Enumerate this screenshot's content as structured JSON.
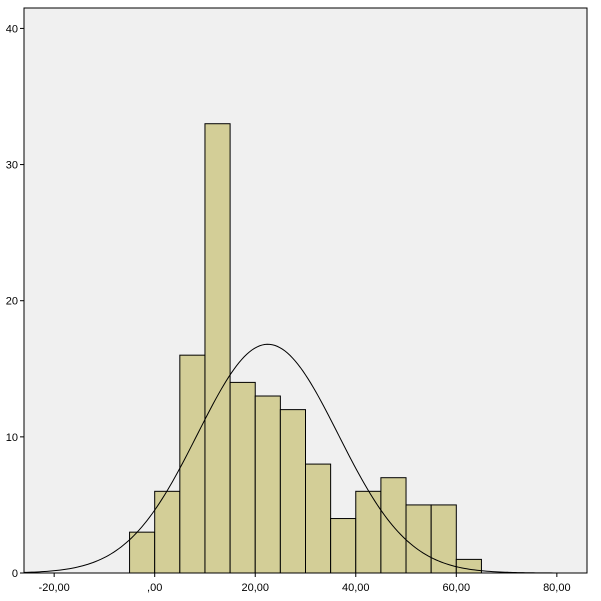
{
  "chart_data": {
    "type": "bar",
    "subtype": "histogram-with-normal-curve",
    "bin_width": 5,
    "bins": [
      {
        "start": -5,
        "end": 0,
        "count": 3
      },
      {
        "start": 0,
        "end": 5,
        "count": 6
      },
      {
        "start": 5,
        "end": 10,
        "count": 16
      },
      {
        "start": 10,
        "end": 15,
        "count": 33
      },
      {
        "start": 15,
        "end": 20,
        "count": 14
      },
      {
        "start": 20,
        "end": 25,
        "count": 13
      },
      {
        "start": 25,
        "end": 30,
        "count": 12
      },
      {
        "start": 30,
        "end": 35,
        "count": 8
      },
      {
        "start": 35,
        "end": 40,
        "count": 4
      },
      {
        "start": 40,
        "end": 45,
        "count": 6
      },
      {
        "start": 45,
        "end": 50,
        "count": 7
      },
      {
        "start": 50,
        "end": 55,
        "count": 5
      },
      {
        "start": 55,
        "end": 60,
        "count": 5
      },
      {
        "start": 60,
        "end": 65,
        "count": 1
      }
    ],
    "normal_curve": {
      "mean": 22.5,
      "sd": 14.0,
      "peak": 16.8
    },
    "xlim": [
      -26,
      86
    ],
    "ylim": [
      0,
      41.5
    ],
    "x_ticks": [
      {
        "value": -20,
        "label": "-20,00"
      },
      {
        "value": 0,
        "label": ",00"
      },
      {
        "value": 20,
        "label": "20,00"
      },
      {
        "value": 40,
        "label": "40,00"
      },
      {
        "value": 60,
        "label": "60,00"
      },
      {
        "value": 80,
        "label": "80,00"
      }
    ],
    "y_ticks": [
      {
        "value": 0,
        "label": "0"
      },
      {
        "value": 10,
        "label": "10"
      },
      {
        "value": 20,
        "label": "20"
      },
      {
        "value": 30,
        "label": "30"
      },
      {
        "value": 40,
        "label": "40"
      }
    ],
    "title": "",
    "xlabel": "",
    "ylabel": "",
    "grid": false,
    "colors": {
      "plot_background": "#f0f0f0",
      "bar_fill": "#d3ce97",
      "bar_stroke": "#000000",
      "curve": "#000000",
      "axis": "#000000"
    }
  }
}
